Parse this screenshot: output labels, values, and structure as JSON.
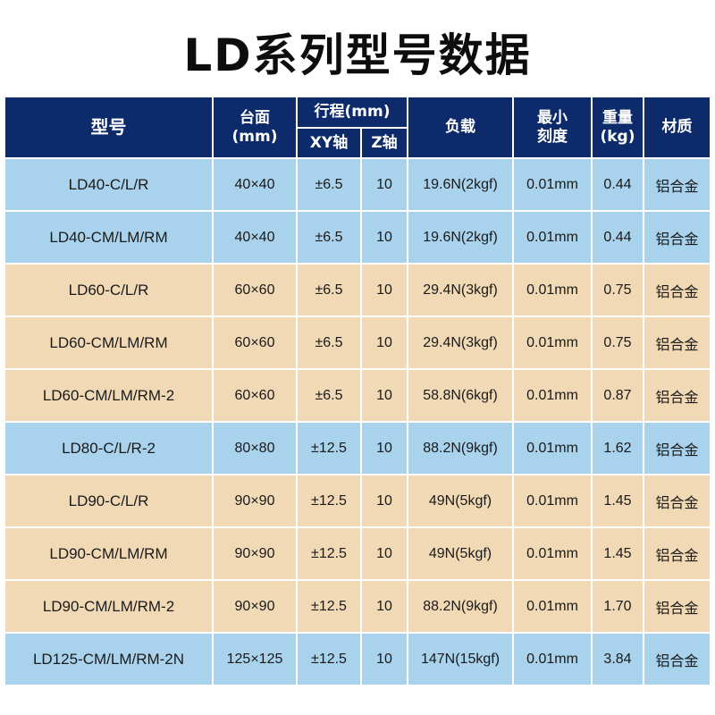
{
  "title": "LD系列型号数据",
  "colors": {
    "header_bg": "#0d2b6b",
    "row_blue": "#a9d2ec",
    "row_tan": "#f1d9b5"
  },
  "headers": {
    "model": "型号",
    "table_line1": "台面",
    "table_line2": "(mm)",
    "travel": "行程(mm)",
    "xy": "XY轴",
    "z": "Z轴",
    "load": "负载",
    "scale_line1": "最小",
    "scale_line2": "刻度",
    "weight_line1": "重量",
    "weight_line2": "(kg)",
    "material": "材质"
  },
  "rows": [
    {
      "tone": "blue",
      "model": "LD40-C/L/R",
      "table": "40×40",
      "xy": "±6.5",
      "z": "10",
      "load": "19.6N(2kgf)",
      "scale": "0.01mm",
      "weight": "0.44",
      "material": "铝合金"
    },
    {
      "tone": "blue",
      "model": "LD40-CM/LM/RM",
      "table": "40×40",
      "xy": "±6.5",
      "z": "10",
      "load": "19.6N(2kgf)",
      "scale": "0.01mm",
      "weight": "0.44",
      "material": "铝合金"
    },
    {
      "tone": "tan",
      "model": "LD60-C/L/R",
      "table": "60×60",
      "xy": "±6.5",
      "z": "10",
      "load": "29.4N(3kgf)",
      "scale": "0.01mm",
      "weight": "0.75",
      "material": "铝合金"
    },
    {
      "tone": "tan",
      "model": "LD60-CM/LM/RM",
      "table": "60×60",
      "xy": "±6.5",
      "z": "10",
      "load": "29.4N(3kgf)",
      "scale": "0.01mm",
      "weight": "0.75",
      "material": "铝合金"
    },
    {
      "tone": "tan",
      "model": "LD60-CM/LM/RM-2",
      "table": "60×60",
      "xy": "±6.5",
      "z": "10",
      "load": "58.8N(6kgf)",
      "scale": "0.01mm",
      "weight": "0.87",
      "material": "铝合金"
    },
    {
      "tone": "blue",
      "model": "LD80-C/L/R-2",
      "table": "80×80",
      "xy": "±12.5",
      "z": "10",
      "load": "88.2N(9kgf)",
      "scale": "0.01mm",
      "weight": "1.62",
      "material": "铝合金"
    },
    {
      "tone": "tan",
      "model": "LD90-C/L/R",
      "table": "90×90",
      "xy": "±12.5",
      "z": "10",
      "load": "49N(5kgf)",
      "scale": "0.01mm",
      "weight": "1.45",
      "material": "铝合金"
    },
    {
      "tone": "tan",
      "model": "LD90-CM/LM/RM",
      "table": "90×90",
      "xy": "±12.5",
      "z": "10",
      "load": "49N(5kgf)",
      "scale": "0.01mm",
      "weight": "1.45",
      "material": "铝合金"
    },
    {
      "tone": "tan",
      "model": "LD90-CM/LM/RM-2",
      "table": "90×90",
      "xy": "±12.5",
      "z": "10",
      "load": "88.2N(9kgf)",
      "scale": "0.01mm",
      "weight": "1.70",
      "material": "铝合金"
    },
    {
      "tone": "blue",
      "model": "LD125-CM/LM/RM-2N",
      "table": "125×125",
      "xy": "±12.5",
      "z": "10",
      "load": "147N(15kgf)",
      "scale": "0.01mm",
      "weight": "3.84",
      "material": "铝合金"
    }
  ]
}
